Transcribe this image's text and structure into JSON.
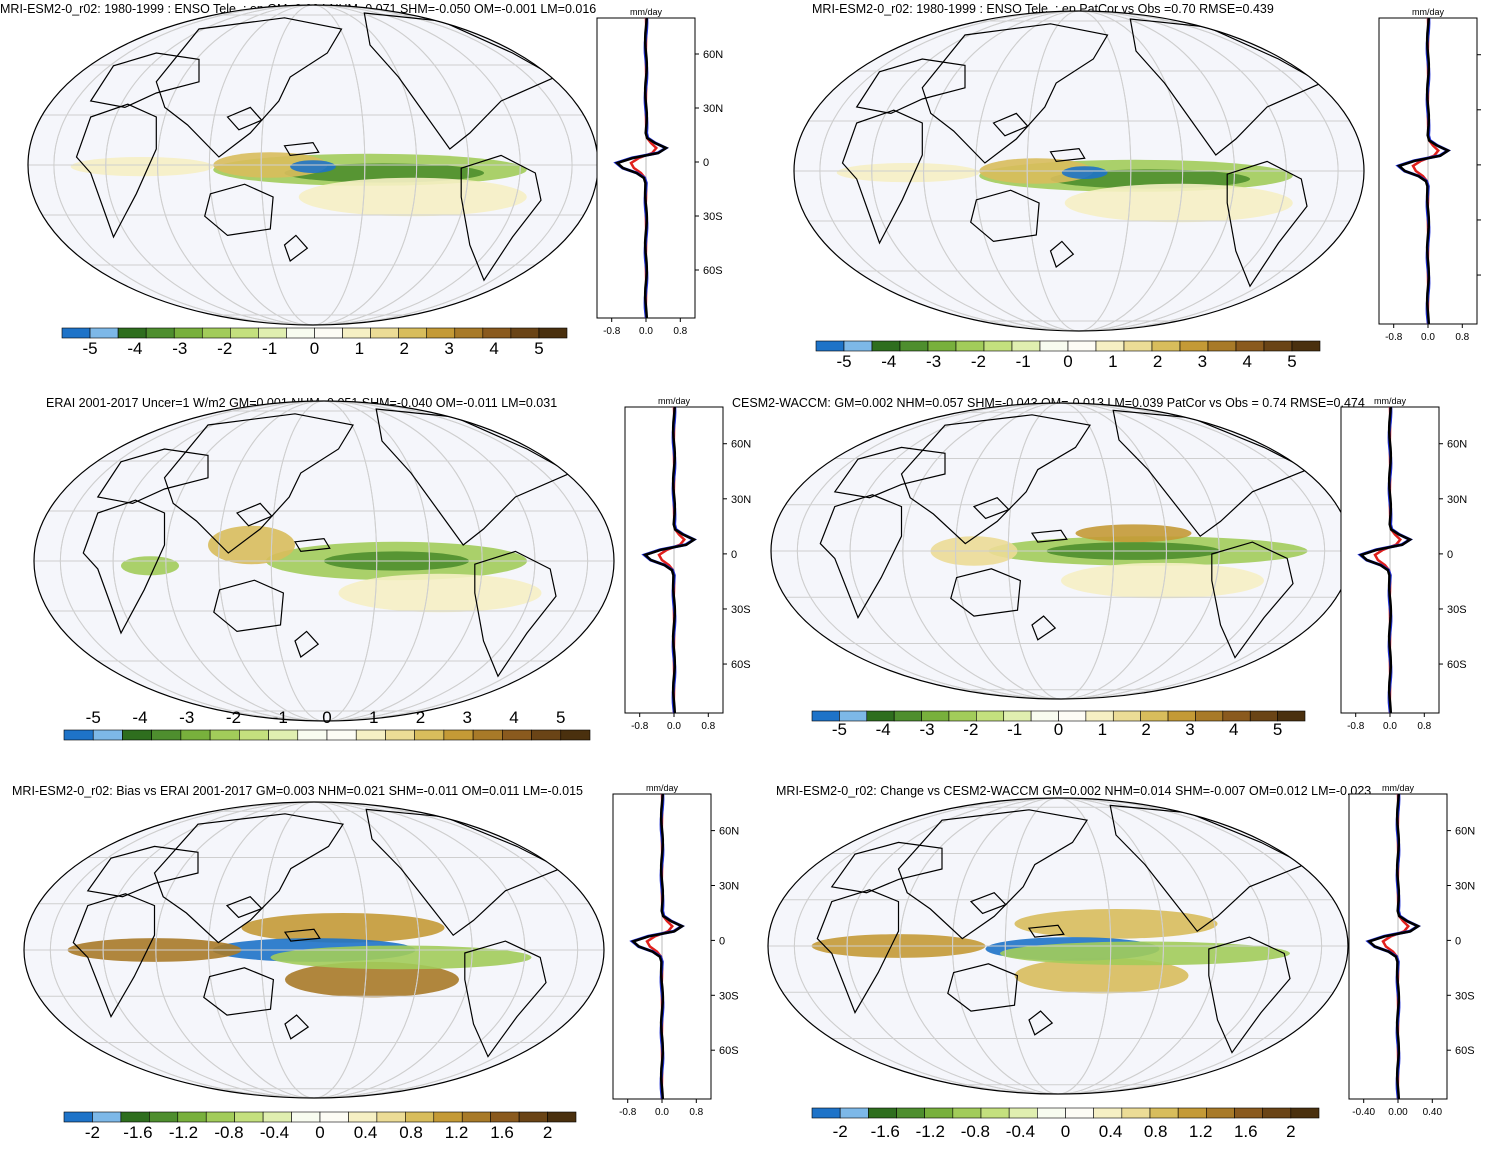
{
  "panels": [
    {
      "id": "p1",
      "title": "MRI-ESM2-0_r02: 1980-1999 : ENSO Tele. : ep GM=0.004 NHM=0.071 SHM=-0.050 OM=-0.001 LM=0.016",
      "units": "mm/day",
      "colorbar_labels": [
        "-5",
        "-4",
        "-3",
        "-2",
        "-1",
        "0",
        "1",
        "2",
        "3",
        "4",
        "5"
      ],
      "profile_xticks": [
        "-0.8",
        "0.0",
        "0.8"
      ],
      "profile_ytick_labels": [
        "60N",
        "30N",
        "0",
        "30S",
        "60S"
      ]
    },
    {
      "id": "p2",
      "title": "MRI-ESM2-0_r02: 1980-1999 : ENSO Tele. : ep PatCor vs Obs =0.70 RMSE=0.439",
      "units": "mm/day",
      "colorbar_labels": [
        "-5",
        "-4",
        "-3",
        "-2",
        "-1",
        "0",
        "1",
        "2",
        "3",
        "4",
        "5"
      ],
      "profile_xticks": [
        "-0.8",
        "0.0",
        "0.8"
      ],
      "profile_ytick_labels": []
    },
    {
      "id": "p3",
      "title": "ERAI 2001-2017 Uncer=1 W/m2 GM=0.001 NHM=0.051 SHM=-0.040 OM=-0.011 LM=0.031",
      "units": "mm/day",
      "colorbar_labels": [
        "-5",
        "-4",
        "-3",
        "-2",
        "-1",
        "0",
        "1",
        "2",
        "3",
        "4",
        "5"
      ],
      "profile_xticks": [
        "-0.8",
        "0.0",
        "0.8"
      ],
      "profile_ytick_labels": [
        "60N",
        "30N",
        "0",
        "30S",
        "60S"
      ]
    },
    {
      "id": "p4",
      "title": "CESM2-WACCM: GM=0.002 NHM=0.057 SHM=-0.043 OM=-0.013 LM=0.039 PatCor vs Obs = 0.74 RMSE=0.474",
      "units": "mm/day",
      "colorbar_labels": [
        "-5",
        "-4",
        "-3",
        "-2",
        "-1",
        "0",
        "1",
        "2",
        "3",
        "4",
        "5"
      ],
      "profile_xticks": [
        "-0.8",
        "0.0",
        "0.8"
      ],
      "profile_ytick_labels": [
        "60N",
        "30N",
        "0",
        "30S",
        "60S"
      ]
    },
    {
      "id": "p5",
      "title": "MRI-ESM2-0_r02: Bias vs ERAI 2001-2017 GM=0.003 NHM=0.021 SHM=-0.011 OM=0.011 LM=-0.015",
      "units": "mm/day",
      "colorbar_labels": [
        "-2",
        "-1.6",
        "-1.2",
        "-0.8",
        "-0.4",
        "0",
        "0.4",
        "0.8",
        "1.2",
        "1.6",
        "2"
      ],
      "profile_xticks": [
        "-0.8",
        "0.0",
        "0.8"
      ],
      "profile_ytick_labels": [
        "60N",
        "30N",
        "0",
        "30S",
        "60S"
      ]
    },
    {
      "id": "p6",
      "title": "MRI-ESM2-0_r02: Change vs CESM2-WACCM GM=0.002 NHM=0.014 SHM=-0.007 OM=0.012 LM=-0.023",
      "units": "mm/day",
      "colorbar_labels": [
        "-2",
        "-1.6",
        "-1.2",
        "-0.8",
        "-0.4",
        "0",
        "0.4",
        "0.8",
        "1.2",
        "1.6",
        "2"
      ],
      "profile_xticks": [
        "-0.40",
        "0.00",
        "0.40"
      ],
      "profile_ytick_labels": [
        "60N",
        "30N",
        "0",
        "30S",
        "60S"
      ]
    }
  ],
  "palette": [
    "#1e73c8",
    "#7db8e8",
    "#2e6e1e",
    "#4e8e2e",
    "#78b03c",
    "#a2cc5a",
    "#c4e07e",
    "#e0efb0",
    "#f8fcf0",
    "#fdfcf5",
    "#f6f0c4",
    "#ecdc96",
    "#d8bd5c",
    "#c49a36",
    "#a87a28",
    "#8a5a1e",
    "#6a4416",
    "#4a300e"
  ],
  "colors": {
    "ocean": "#f5f6fb",
    "zonal_a": "#e0201c",
    "zonal_b": "#1f2fd8",
    "zonal_c": "#000000"
  }
}
